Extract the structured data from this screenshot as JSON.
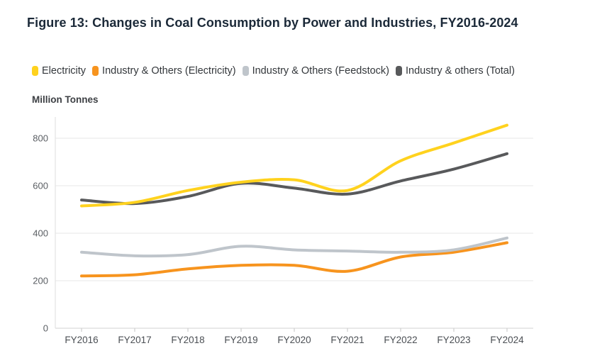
{
  "title": "Figure 13: Changes in Coal Consumption by Power and Industries, FY2016-2024",
  "chart_data": {
    "type": "line",
    "title": "Figure 13: Changes in Coal Consumption by Power and Industries, FY2016-2024",
    "xlabel": "",
    "ylabel": "Million Tonnes",
    "categories": [
      "FY2016",
      "FY2017",
      "FY2018",
      "FY2019",
      "FY2020",
      "FY2021",
      "FY2022",
      "FY2023",
      "FY2024"
    ],
    "y_ticks": [
      0,
      200,
      400,
      600,
      800
    ],
    "ylim": [
      0,
      880
    ],
    "grid": true,
    "legend_position": "top",
    "series": [
      {
        "name": "Electricity",
        "color": "#FFD21E",
        "values": [
          515,
          530,
          580,
          615,
          625,
          580,
          705,
          780,
          855
        ]
      },
      {
        "name": "Industry & Others (Electricity)",
        "color": "#F7941E",
        "values": [
          220,
          225,
          250,
          265,
          265,
          240,
          300,
          320,
          360
        ]
      },
      {
        "name": "Industry & Others (Feedstock)",
        "color": "#BFC5CB",
        "values": [
          320,
          305,
          310,
          345,
          330,
          325,
          320,
          330,
          380
        ]
      },
      {
        "name": "Industry & others (Total)",
        "color": "#58595B",
        "values": [
          540,
          525,
          555,
          610,
          590,
          565,
          620,
          670,
          735
        ]
      }
    ],
    "style": {
      "gridline_color": "#ececec",
      "baseline_color": "#d9d9d9",
      "axis_line_color": "#e3e3e3",
      "tick_color": "#cfcfcf"
    }
  }
}
